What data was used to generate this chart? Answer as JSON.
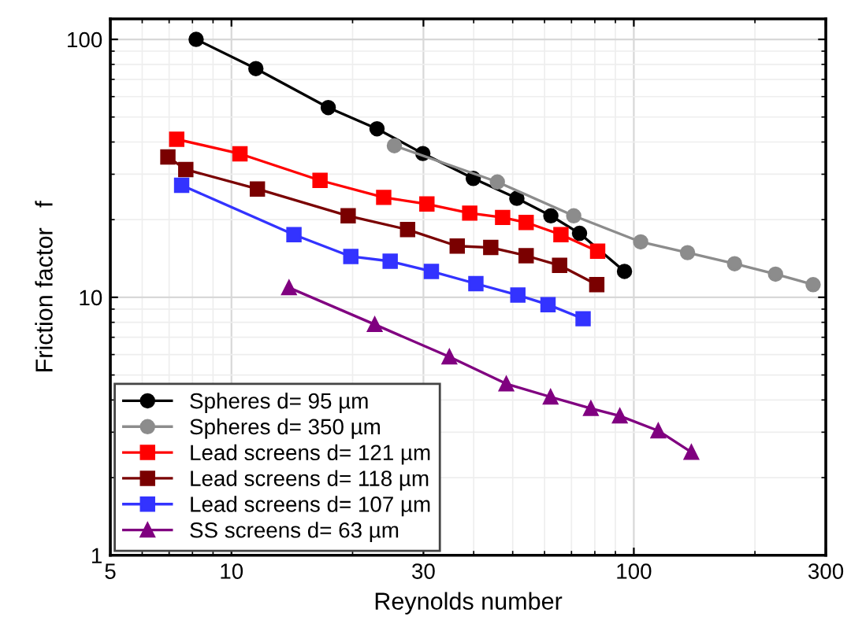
{
  "chart_data": {
    "type": "line",
    "xlabel": "Reynolds number",
    "ylabel": "Friction factor   f",
    "log": "xy",
    "xlim": [
      5,
      300
    ],
    "ylim": [
      1,
      120
    ],
    "xticks": [
      5,
      10,
      30,
      100,
      300
    ],
    "yticks": [
      1,
      10,
      100
    ],
    "grid": true,
    "legend": "bottom left",
    "line_style": "solid",
    "series": [
      {
        "name": "Spheres d= 95 µm",
        "color": "#000000",
        "marker": "circle",
        "x": [
          8.17,
          11.5,
          17.4,
          23.0,
          29.9,
          39.9,
          51.2,
          62.2,
          73.3,
          94.8
        ],
        "values": [
          100,
          77,
          54.4,
          45,
          36.1,
          28.9,
          24.2,
          20.7,
          17.7,
          12.6
        ]
      },
      {
        "name": "Spheres d= 350 µm",
        "color": "#8c8c8c",
        "marker": "circle",
        "x": [
          25.4,
          45.8,
          70.9,
          104,
          136,
          178,
          225,
          279
        ],
        "values": [
          38.7,
          28,
          20.7,
          16.4,
          14.9,
          13.5,
          12.3,
          11.2
        ]
      },
      {
        "name": "Lead screens d= 121 µm",
        "color": "#ff0000",
        "marker": "square",
        "x": [
          7.31,
          10.5,
          16.6,
          23.9,
          30.6,
          39.1,
          47.2,
          54,
          65.9,
          81.3
        ],
        "values": [
          41,
          36,
          28.4,
          24.4,
          23,
          21.2,
          20.4,
          19.5,
          17.5,
          15.1
        ]
      },
      {
        "name": "Lead screens d= 118 µm",
        "color": "#7a0000",
        "marker": "square",
        "x": [
          6.95,
          7.7,
          11.6,
          19.5,
          27.4,
          36.4,
          44.1,
          54,
          65.4,
          80.9
        ],
        "values": [
          35,
          31.3,
          26.3,
          20.7,
          18.3,
          15.8,
          15.6,
          14.5,
          13.3,
          11.2
        ]
      },
      {
        "name": "Lead screens d= 107 µm",
        "color": "#3333ff",
        "marker": "square",
        "x": [
          7.52,
          14.3,
          19.8,
          24.8,
          31.4,
          40.5,
          51.5,
          61.2,
          74.8
        ],
        "values": [
          27.2,
          17.5,
          14.4,
          13.8,
          12.6,
          11.3,
          10.2,
          9.37,
          8.26
        ]
      },
      {
        "name": "SS screens d= 63 µm",
        "color": "#800080",
        "marker": "triangle",
        "x": [
          13.9,
          22.7,
          34.8,
          48.2,
          62.1,
          78.2,
          92.3,
          115,
          139
        ],
        "values": [
          10.9,
          7.85,
          5.88,
          4.62,
          4.11,
          3.71,
          3.47,
          3.04,
          2.51
        ]
      }
    ]
  }
}
